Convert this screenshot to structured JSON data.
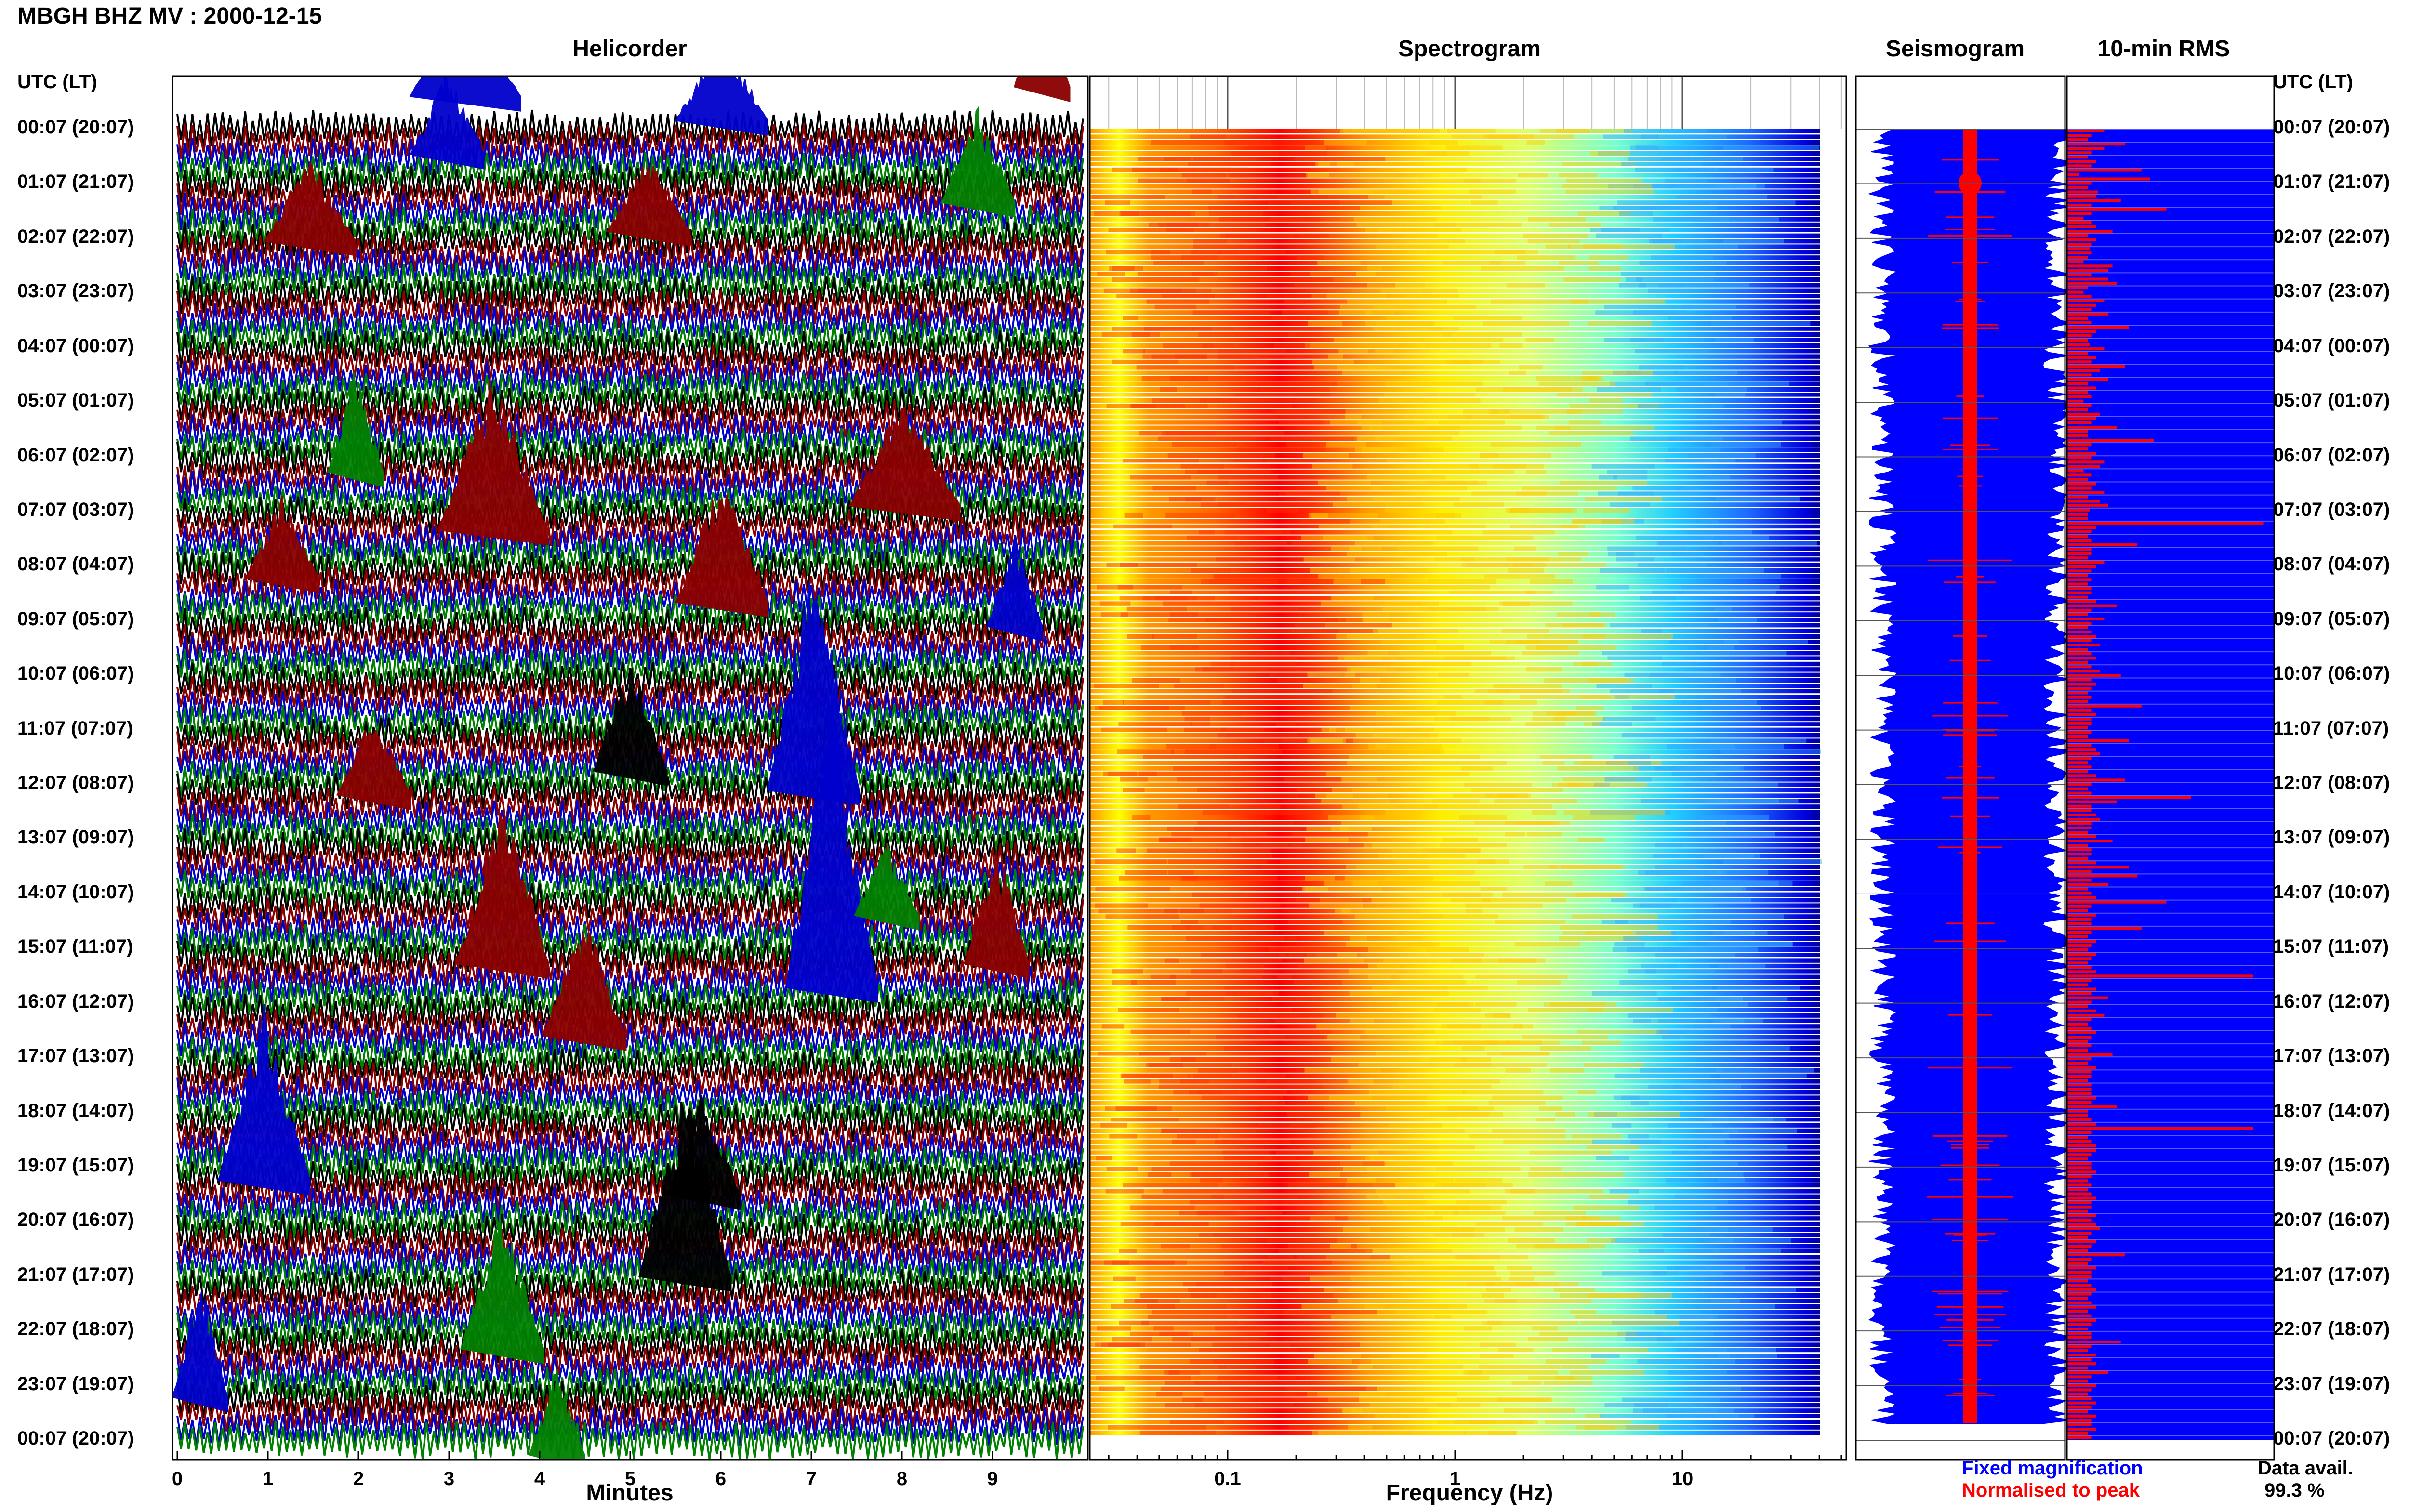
{
  "page_title": "MBGH BHZ MV : 2000-12-15",
  "utc_header": "UTC (LT)",
  "panels": {
    "helicorder": "Helicorder",
    "spectrogram": "Spectrogram",
    "seismogram": "Seismogram",
    "rms": "10-min RMS"
  },
  "legend": {
    "fixed": "Fixed magnification",
    "normalised": "Normalised to peak",
    "fixed_color": "#0000ff",
    "normalised_color": "#ff0000"
  },
  "data_avail": {
    "label": "Data avail.",
    "value": "99.3 %"
  },
  "chart_data": [
    {
      "type": "helicorder",
      "xlabel": "Minutes",
      "xlim": [
        0,
        10
      ],
      "x_ticks": [
        "0",
        "1",
        "2",
        "3",
        "4",
        "5",
        "6",
        "7",
        "8",
        "9"
      ],
      "y_tick_labels": [
        "00:07 (20:07)",
        "01:07 (21:07)",
        "02:07 (22:07)",
        "03:07 (23:07)",
        "04:07 (00:07)",
        "05:07 (01:07)",
        "06:07 (02:07)",
        "07:07 (03:07)",
        "08:07 (04:07)",
        "09:07 (05:07)",
        "10:07 (06:07)",
        "11:07 (07:07)",
        "12:07 (08:07)",
        "13:07 (09:07)",
        "14:07 (10:07)",
        "15:07 (11:07)",
        "16:07 (12:07)",
        "17:07 (13:07)",
        "18:07 (14:07)",
        "19:07 (15:07)",
        "20:07 (16:07)",
        "21:07 (17:07)",
        "22:07 (18:07)",
        "23:07 (19:07)",
        "00:07 (20:07)"
      ],
      "trace_colors": [
        "#000000",
        "#8b0000",
        "#0000cd",
        "#008000"
      ]
    },
    {
      "type": "heatmap",
      "xlabel": "Frequency (Hz)",
      "x_scale": "log",
      "x_ticks": [
        "0.1",
        "1",
        "10"
      ],
      "colormap": "jet"
    },
    {
      "type": "seismogram",
      "series": [
        {
          "name": "Fixed magnification",
          "color": "#0000ff"
        },
        {
          "name": "Normalised to peak",
          "color": "#ff0000"
        }
      ]
    },
    {
      "type": "bar",
      "title": "10-min RMS",
      "values_normalised": [
        0.18,
        0.12,
        0.1,
        0.28,
        0.18,
        0.12,
        0.1,
        0.14,
        0.12,
        0.36,
        0.06,
        0.4,
        0.12,
        0.1,
        0.15,
        0.14,
        0.26,
        0.12,
        0.48,
        0.12,
        0.08,
        0.12,
        0.14,
        0.22,
        0.1,
        0.14,
        0.12,
        0.11,
        0.12,
        0.1,
        0.08,
        0.22,
        0.2,
        0.12,
        0.2,
        0.24,
        0.1,
        0.08,
        0.12,
        0.18,
        0.14,
        0.12,
        0.2,
        0.1,
        0.12,
        0.3,
        0.14,
        0.12,
        0.1,
        0.11,
        0.18,
        0.1,
        0.14,
        0.12,
        0.28,
        0.16,
        0.12,
        0.2,
        0.1,
        0.14,
        0.1,
        0.12,
        0.08,
        0.12,
        0.1,
        0.16,
        0.14,
        0.12,
        0.24,
        0.1,
        0.1,
        0.42,
        0.12,
        0.1,
        0.14,
        0.12,
        0.18,
        0.16,
        0.08,
        0.12,
        0.1,
        0.14,
        0.12,
        0.18,
        0.1,
        0.16,
        0.2,
        0.11,
        0.1,
        0.1,
        0.95,
        0.14,
        0.12,
        0.1,
        0.12,
        0.34,
        0.12,
        0.12,
        0.1,
        0.18,
        0.14,
        0.12,
        0.1,
        0.12,
        0.1,
        0.12,
        0.12,
        0.1,
        0.14,
        0.24,
        0.12,
        0.1,
        0.18,
        0.12,
        0.1,
        0.12,
        0.14,
        0.12,
        0.16,
        0.1,
        0.12,
        0.14,
        0.1,
        0.12,
        0.16,
        0.26,
        0.12,
        0.14,
        0.12,
        0.1,
        0.12,
        0.1,
        0.36,
        0.12,
        0.14,
        0.12,
        0.12,
        0.1,
        0.12,
        0.1,
        0.3,
        0.12,
        0.14,
        0.16,
        0.12,
        0.1,
        0.12,
        0.1,
        0.14,
        0.28,
        0.12,
        0.1,
        0.12,
        0.6,
        0.24,
        0.12,
        0.12,
        0.14,
        0.16,
        0.12,
        0.12,
        0.1,
        0.14,
        0.22,
        0.1,
        0.12,
        0.12,
        0.1,
        0.14,
        0.3,
        0.12,
        0.34,
        0.12,
        0.2,
        0.1,
        0.12,
        0.14,
        0.48,
        0.12,
        0.1,
        0.14,
        0.12,
        0.12,
        0.36,
        0.12,
        0.1,
        0.14,
        0.12,
        0.1,
        0.14,
        0.12,
        0.1,
        0.12,
        0.14,
        0.9,
        0.12,
        0.1,
        0.14,
        0.12,
        0.2,
        0.12,
        0.1,
        0.14,
        0.18,
        0.12,
        0.1,
        0.12,
        0.14,
        0.12,
        0.1,
        0.12,
        0.1,
        0.22,
        0.12,
        0.1,
        0.14,
        0.12,
        0.12,
        0.1,
        0.12,
        0.12,
        0.12,
        0.14,
        0.12,
        0.24,
        0.1,
        0.1,
        0.12,
        0.14,
        0.9,
        0.12,
        0.1,
        0.12,
        0.14,
        0.14,
        0.12,
        0.1,
        0.12,
        0.12,
        0.14,
        0.12,
        0.1,
        0.12,
        0.1,
        0.12,
        0.14,
        0.12,
        0.12,
        0.1,
        0.14,
        0.12,
        0.14,
        0.16,
        0.12,
        0.1,
        0.14,
        0.12,
        0.1,
        0.28,
        0.12,
        0.1,
        0.14,
        0.12,
        0.12,
        0.1,
        0.12,
        0.14,
        0.12,
        0.1,
        0.12,
        0.14,
        0.1,
        0.12,
        0.14,
        0.12,
        0.1,
        0.12,
        0.12,
        0.26,
        0.12,
        0.1,
        0.14,
        0.12,
        0.14,
        0.1,
        0.2,
        0.12,
        0.1,
        0.14,
        0.12,
        0.1,
        0.12,
        0.14,
        0.12,
        0.1,
        0.14,
        0.12,
        0.12,
        0.14,
        0.1,
        0.12
      ]
    }
  ]
}
